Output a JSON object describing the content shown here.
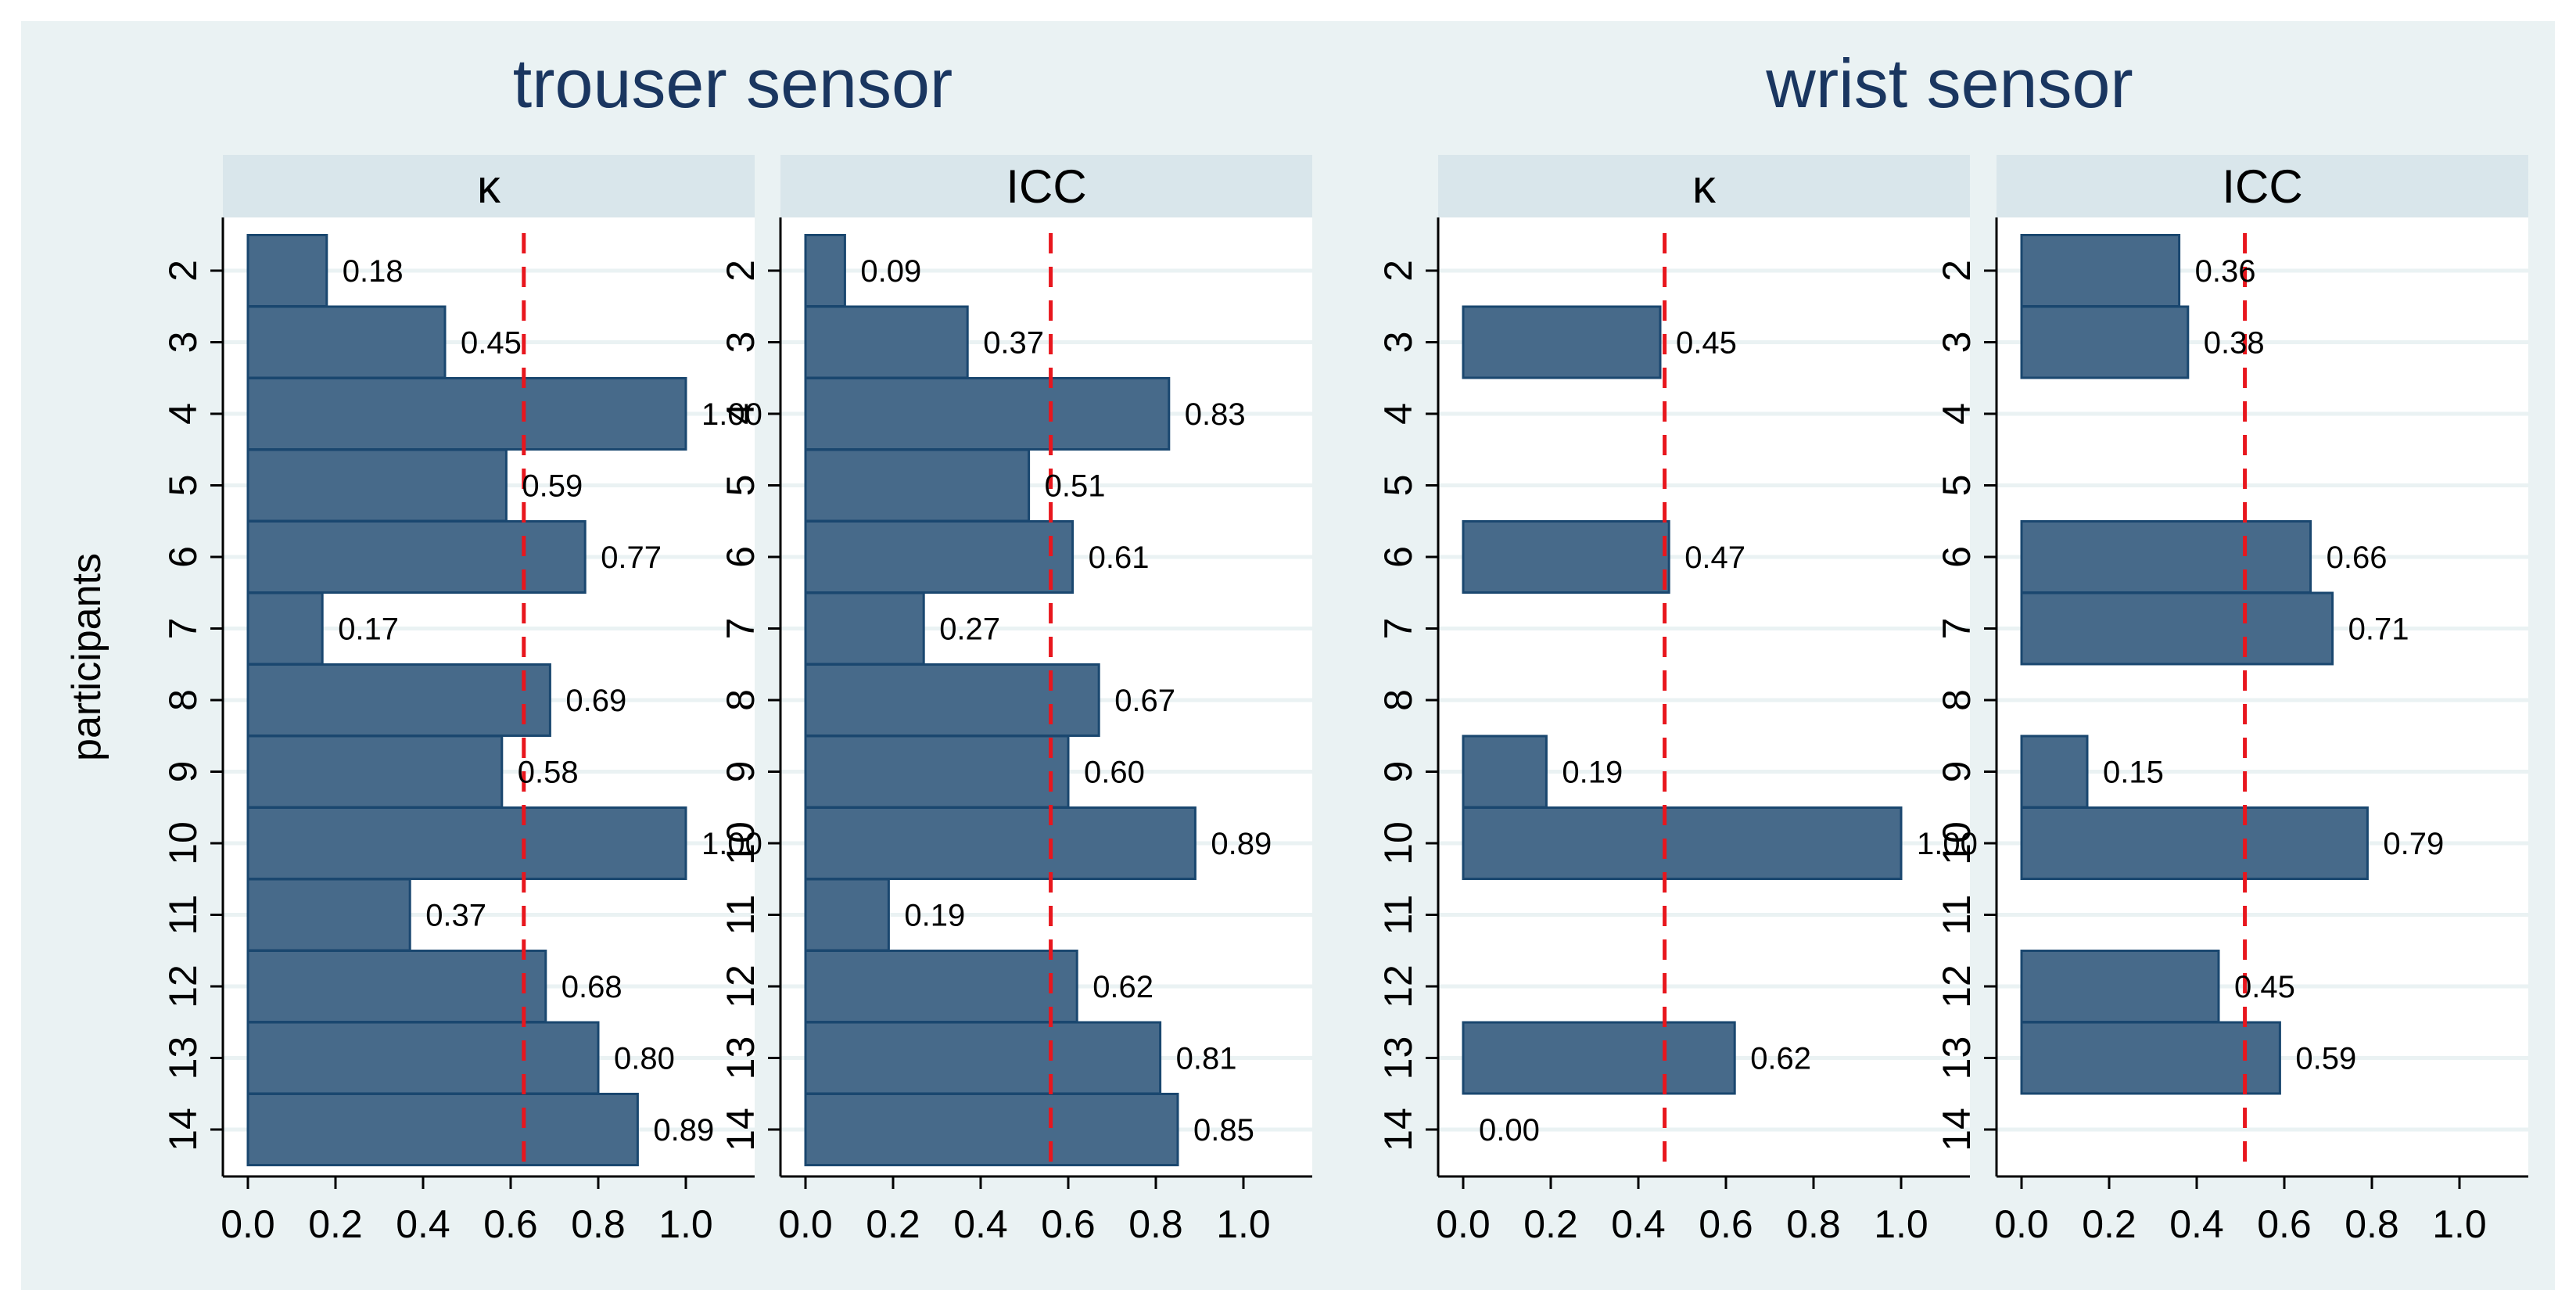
{
  "chart_data": {
    "type": "bar",
    "orientation": "horizontal",
    "ylabel": "participants",
    "categories": [
      "2",
      "3",
      "4",
      "5",
      "6",
      "7",
      "8",
      "9",
      "10",
      "11",
      "12",
      "13",
      "14"
    ],
    "xlim": [
      0,
      1
    ],
    "xticks": [
      "0.0",
      "0.2",
      "0.4",
      "0.6",
      "0.8",
      "1.0"
    ],
    "grid": true,
    "colors": {
      "bar": "#476a8a",
      "bar_edge": "#1a476f",
      "reference_line": "#e8161d",
      "title": "#1a3660",
      "strip": "#d9e6eb"
    },
    "groups": [
      {
        "title": "trouser sensor",
        "panels": [
          {
            "label": "κ",
            "reference_line": 0.63,
            "values": [
              0.18,
              0.45,
              1.0,
              0.59,
              0.77,
              0.17,
              0.69,
              0.58,
              1.0,
              0.37,
              0.68,
              0.8,
              0.89
            ],
            "value_labels": [
              "0.18",
              "0.45",
              "1.00",
              "0.59",
              "0.77",
              "0.17",
              "0.69",
              "0.58",
              "1.00",
              "0.37",
              "0.68",
              "0.80",
              "0.89"
            ]
          },
          {
            "label": "ICC",
            "reference_line": 0.56,
            "values": [
              0.09,
              0.37,
              0.83,
              0.51,
              0.61,
              0.27,
              0.67,
              0.6,
              0.89,
              0.19,
              0.62,
              0.81,
              0.85
            ],
            "value_labels": [
              "0.09",
              "0.37",
              "0.83",
              "0.51",
              "0.61",
              "0.27",
              "0.67",
              "0.60",
              "0.89",
              "0.19",
              "0.62",
              "0.81",
              "0.85"
            ]
          }
        ]
      },
      {
        "title": "wrist sensor",
        "panels": [
          {
            "label": "κ",
            "reference_line": 0.46,
            "values": [
              null,
              0.45,
              null,
              null,
              0.47,
              null,
              null,
              0.19,
              1.0,
              null,
              null,
              0.62,
              0.0
            ],
            "value_labels": [
              null,
              "0.45",
              null,
              null,
              "0.47",
              null,
              null,
              "0.19",
              "1.00",
              null,
              null,
              "0.62",
              "0.00"
            ]
          },
          {
            "label": "ICC",
            "reference_line": 0.51,
            "values": [
              0.36,
              0.38,
              null,
              null,
              0.66,
              0.71,
              null,
              0.15,
              0.79,
              null,
              0.45,
              0.59,
              null
            ],
            "value_labels": [
              "0.36",
              "0.38",
              null,
              null,
              "0.66",
              "0.71",
              null,
              "0.15",
              "0.79",
              null,
              "0.45",
              "0.59",
              null
            ]
          }
        ]
      }
    ]
  }
}
